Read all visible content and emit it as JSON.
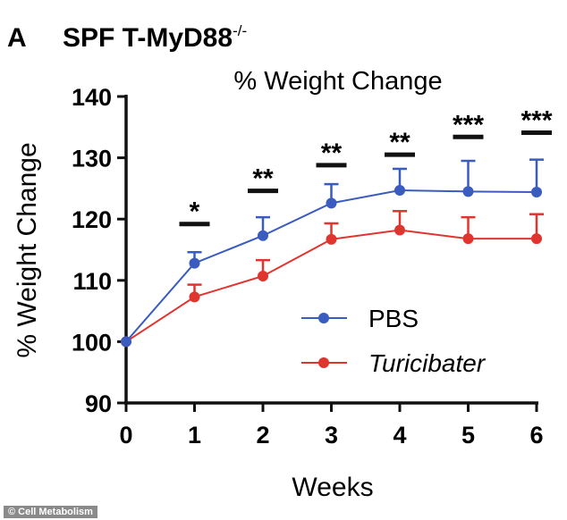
{
  "chart_data": {
    "type": "line",
    "panel_label": "A",
    "heading": "SPF T-MyD88",
    "heading_superscript": "-/-",
    "title": "% Weight Change",
    "xlabel": "Weeks",
    "ylabel": "% Weight Change",
    "x": [
      0,
      1,
      2,
      3,
      4,
      5,
      6
    ],
    "xlim": [
      0,
      6
    ],
    "ylim": [
      90,
      140
    ],
    "yticks": [
      90,
      100,
      110,
      120,
      130,
      140
    ],
    "grid": false,
    "legend_placement": "bottom-right",
    "series": [
      {
        "name": "PBS",
        "color": "#3a5bbf",
        "italic": false,
        "values": [
          100,
          112.8,
          117.3,
          122.6,
          124.7,
          124.5,
          124.4
        ],
        "error_up": [
          0,
          1.8,
          3.0,
          3.1,
          3.5,
          5.0,
          5.3
        ]
      },
      {
        "name": "Turicibater",
        "color": "#e0342f",
        "italic": true,
        "values": [
          100,
          107.3,
          110.7,
          116.7,
          118.2,
          116.8,
          116.8
        ],
        "error_up": [
          0,
          2.0,
          2.6,
          2.6,
          3.1,
          3.5,
          4.0
        ]
      }
    ],
    "significance": [
      {
        "x": 1,
        "label": "*",
        "level": 119.2
      },
      {
        "x": 2,
        "label": "**",
        "level": 124.6
      },
      {
        "x": 3,
        "label": "**",
        "level": 128.8
      },
      {
        "x": 4,
        "label": "**",
        "level": 130.5
      },
      {
        "x": 5,
        "label": "***",
        "level": 133.4
      },
      {
        "x": 6,
        "label": "***",
        "level": 134.1
      }
    ]
  },
  "credit": "© Cell Metabolism"
}
